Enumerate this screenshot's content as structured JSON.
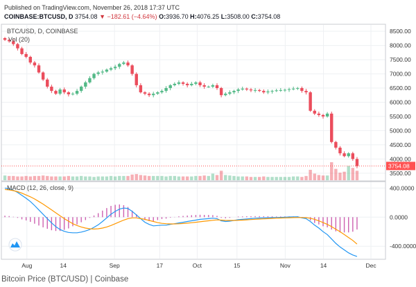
{
  "header": {
    "published": "Published on TradingView.com, November 26, 2018 17:37 UTC",
    "symbol": "COINBASE:BTCUSD, D",
    "last": "3754.08",
    "change": "▼ −182.61 (−4.64%)",
    "open_label": "O:",
    "open": "3936.70",
    "high_label": "H:",
    "high": "4076.25",
    "low_label": "L:",
    "low": "3508.00",
    "close_label": "C:",
    "close": "3754.08"
  },
  "caption": "Bitcoin Price (BTC/USD) | Coinbase",
  "colors": {
    "up": "#53b987",
    "down": "#eb4d5c",
    "macd": "#2196f3",
    "signal": "#ff9800",
    "hist": "#c850a8",
    "last_price": "#ff5252"
  },
  "icons": {
    "logo": "tradingview-cloud-icon"
  },
  "chart_data": [
    {
      "type": "candlestick",
      "legend": [
        "BTC/USD, D, COINBASE",
        "Vol (20)"
      ],
      "y_axis_labels": [
        "8500.00",
        "8000.00",
        "7500.00",
        "7000.00",
        "6500.00",
        "6000.00",
        "5500.00",
        "5000.00",
        "4500.00",
        "4000.00",
        "3500.00"
      ],
      "ylim": [
        3300,
        8700
      ],
      "x_axis_labels": [
        "Aug",
        "14",
        "Sep",
        "17",
        "Oct",
        "15",
        "Nov",
        "14",
        "Dec"
      ],
      "last_price_label": "3754.08",
      "close_series": [
        8200,
        8150,
        8050,
        7900,
        7700,
        7600,
        7400,
        7300,
        7050,
        6800,
        6550,
        6400,
        6300,
        6450,
        6350,
        6280,
        6300,
        6400,
        6550,
        6700,
        6850,
        7000,
        7050,
        7080,
        7150,
        7200,
        7250,
        7350,
        7400,
        7300,
        7000,
        6600,
        6350,
        6300,
        6250,
        6300,
        6350,
        6400,
        6500,
        6600,
        6650,
        6700,
        6650,
        6600,
        6650,
        6700,
        6600,
        6550,
        6550,
        6600,
        6500,
        6250,
        6300,
        6350,
        6400,
        6450,
        6480,
        6450,
        6420,
        6430,
        6400,
        6350,
        6380,
        6400,
        6420,
        6430,
        6440,
        6460,
        6480,
        6500,
        6400,
        6350,
        5700,
        5600,
        5550,
        5500,
        5600,
        4600,
        4400,
        4200,
        4100,
        4200,
        4000,
        3750
      ],
      "volume_series": [
        10,
        9,
        9,
        8,
        8,
        9,
        8,
        9,
        9,
        10,
        9,
        8,
        8,
        8,
        8,
        9,
        8,
        8,
        9,
        8,
        8,
        7,
        8,
        8,
        8,
        9,
        8,
        9,
        9,
        9,
        12,
        13,
        11,
        10,
        9,
        9,
        9,
        9,
        8,
        9,
        9,
        8,
        8,
        8,
        8,
        9,
        9,
        10,
        9,
        14,
        11,
        20,
        11,
        10,
        9,
        8,
        8,
        8,
        7,
        7,
        7,
        8,
        7,
        7,
        7,
        7,
        7,
        7,
        8,
        8,
        7,
        9,
        22,
        14,
        11,
        10,
        10,
        38,
        24,
        16,
        18,
        30,
        26,
        20
      ]
    },
    {
      "type": "line",
      "legend": [
        "MACD (12, 26, close, 9)"
      ],
      "y_axis_labels": [
        "400.0000",
        "0.0000",
        "-400.0000"
      ],
      "ylim": [
        -560,
        460
      ],
      "series": [
        {
          "name": "MACD",
          "values": [
            400,
            390,
            370,
            340,
            300,
            260,
            215,
            160,
            100,
            40,
            -20,
            -80,
            -130,
            -170,
            -195,
            -210,
            -215,
            -215,
            -205,
            -190,
            -170,
            -140,
            -105,
            -60,
            -10,
            40,
            80,
            110,
            125,
            120,
            80,
            30,
            -20,
            -70,
            -100,
            -120,
            -115,
            -110,
            -110,
            -100,
            -90,
            -80,
            -70,
            -60,
            -50,
            -40,
            -30,
            -25,
            -20,
            -15,
            -20,
            -50,
            -60,
            -55,
            -45,
            -35,
            -30,
            -25,
            -20,
            -15,
            -12,
            -10,
            -8,
            -6,
            -5,
            -3,
            0,
            2,
            4,
            5,
            -10,
            -20,
            -60,
            -110,
            -150,
            -200,
            -240,
            -300,
            -360,
            -410,
            -450,
            -490,
            -520,
            -540
          ]
        },
        {
          "name": "Signal",
          "values": [
            380,
            375,
            365,
            350,
            330,
            305,
            280,
            250,
            215,
            180,
            140,
            100,
            60,
            20,
            -20,
            -55,
            -90,
            -115,
            -135,
            -150,
            -160,
            -163,
            -160,
            -150,
            -135,
            -115,
            -90,
            -65,
            -40,
            -20,
            -10,
            -10,
            -20,
            -30,
            -45,
            -60,
            -75,
            -85,
            -90,
            -93,
            -93,
            -91,
            -87,
            -82,
            -77,
            -70,
            -63,
            -56,
            -50,
            -43,
            -38,
            -40,
            -44,
            -45,
            -45,
            -43,
            -40,
            -37,
            -33,
            -29,
            -26,
            -23,
            -20,
            -17,
            -14,
            -12,
            -10,
            -8,
            -6,
            -5,
            -5,
            -7,
            -15,
            -30,
            -50,
            -75,
            -100,
            -130,
            -165,
            -200,
            -240,
            -280,
            -320,
            -370
          ]
        }
      ]
    }
  ]
}
